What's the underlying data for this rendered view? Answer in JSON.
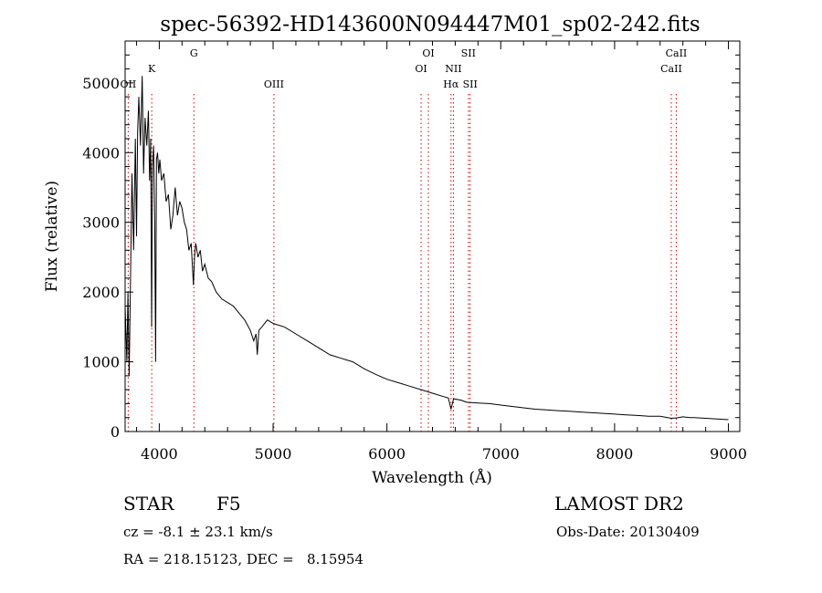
{
  "chart_data": {
    "type": "line",
    "title": "spec-56392-HD143600N094447M01_sp02-242.fits",
    "xlabel": "Wavelength (Å)",
    "ylabel": "Flux (relative)",
    "xlim": [
      3700,
      9100
    ],
    "ylim": [
      0,
      5600
    ],
    "xticks": [
      4000,
      5000,
      6000,
      7000,
      8000,
      9000
    ],
    "xtick_labels": [
      "4000",
      "5000",
      "6000",
      "7000",
      "8000",
      "9000"
    ],
    "yticks": [
      0,
      1000,
      2000,
      3000,
      4000,
      5000
    ],
    "ytick_labels": [
      "0",
      "1000",
      "2000",
      "3000",
      "4000",
      "5000"
    ],
    "grid": false,
    "legend": "none",
    "line_color": "#000000",
    "marker_color": "#d00000",
    "series": [
      {
        "x": [
          3700,
          3715,
          3725,
          3735,
          3745,
          3760,
          3775,
          3790,
          3800,
          3810,
          3820,
          3835,
          3850,
          3862,
          3875,
          3890,
          3905,
          3915,
          3925,
          3933,
          3940,
          3950,
          3960,
          3968,
          3975,
          3985,
          3995,
          4005,
          4020,
          4040,
          4060,
          4080,
          4101,
          4120,
          4140,
          4160,
          4180,
          4200,
          4220,
          4240,
          4260,
          4280,
          4300,
          4310,
          4320,
          4340,
          4360,
          4380,
          4400,
          4430,
          4460,
          4500,
          4550,
          4600,
          4650,
          4700,
          4750,
          4800,
          4830,
          4850,
          4861,
          4875,
          4900,
          4950,
          5000,
          5100,
          5200,
          5300,
          5400,
          5500,
          5600,
          5700,
          5800,
          5900,
          6000,
          6100,
          6200,
          6300,
          6400,
          6500,
          6540,
          6563,
          6585,
          6650,
          6700,
          6800,
          6900,
          7000,
          7100,
          7200,
          7300,
          7400,
          7500,
          7600,
          7700,
          7800,
          7900,
          8000,
          8100,
          8200,
          8300,
          8400,
          8498,
          8542,
          8600,
          8662,
          8700,
          8800,
          8900,
          9000
        ],
        "values": [
          1800,
          1000,
          2000,
          800,
          1900,
          3700,
          2600,
          4200,
          2800,
          4300,
          4800,
          4100,
          5100,
          3700,
          4500,
          4100,
          4600,
          3600,
          4200,
          1500,
          3800,
          4100,
          3000,
          1000,
          3900,
          4000,
          3700,
          3900,
          3600,
          3700,
          3300,
          3400,
          2900,
          3100,
          3500,
          3100,
          3300,
          3200,
          3000,
          2900,
          2600,
          2700,
          2100,
          2500,
          2700,
          2500,
          2600,
          2300,
          2400,
          2200,
          2150,
          2000,
          1900,
          1850,
          1800,
          1700,
          1600,
          1450,
          1300,
          1400,
          1100,
          1450,
          1500,
          1600,
          1550,
          1500,
          1400,
          1300,
          1200,
          1100,
          1050,
          1000,
          900,
          820,
          750,
          700,
          650,
          600,
          550,
          500,
          480,
          320,
          470,
          450,
          420,
          410,
          400,
          380,
          360,
          340,
          320,
          310,
          300,
          290,
          280,
          270,
          260,
          250,
          240,
          230,
          220,
          220,
          190,
          195,
          210,
          200,
          200,
          190,
          180,
          170
        ]
      }
    ],
    "line_markers": [
      {
        "x": 3727,
        "label": "OII",
        "row": 1
      },
      {
        "x": 3934,
        "label": "K",
        "row": 0
      },
      {
        "x": 4304,
        "label": "G",
        "row": -1
      },
      {
        "x": 5007,
        "label": "OIII",
        "row": 1
      },
      {
        "x": 6300,
        "label": "OI",
        "row": 0
      },
      {
        "x": 6364,
        "label": "OI",
        "row": -1
      },
      {
        "x": 6563,
        "label": "Hα",
        "row": 1
      },
      {
        "x": 6584,
        "label": "NII",
        "row": 0
      },
      {
        "x": 6716,
        "label": "SII",
        "row": -1
      },
      {
        "x": 6731,
        "label": "SII",
        "row": 1
      },
      {
        "x": 8498,
        "label": "CaII",
        "row": 0
      },
      {
        "x": 8542,
        "label": "CaII",
        "row": -1
      }
    ]
  },
  "info": {
    "object_class": "STAR",
    "subclass": "F5",
    "survey": "LAMOST DR2",
    "redshift_line": "cz = -8.1 ± 23.1 km/s",
    "obs_date": "Obs-Date: 20130409",
    "coords": "RA = 218.15123, DEC =   8.15954"
  }
}
